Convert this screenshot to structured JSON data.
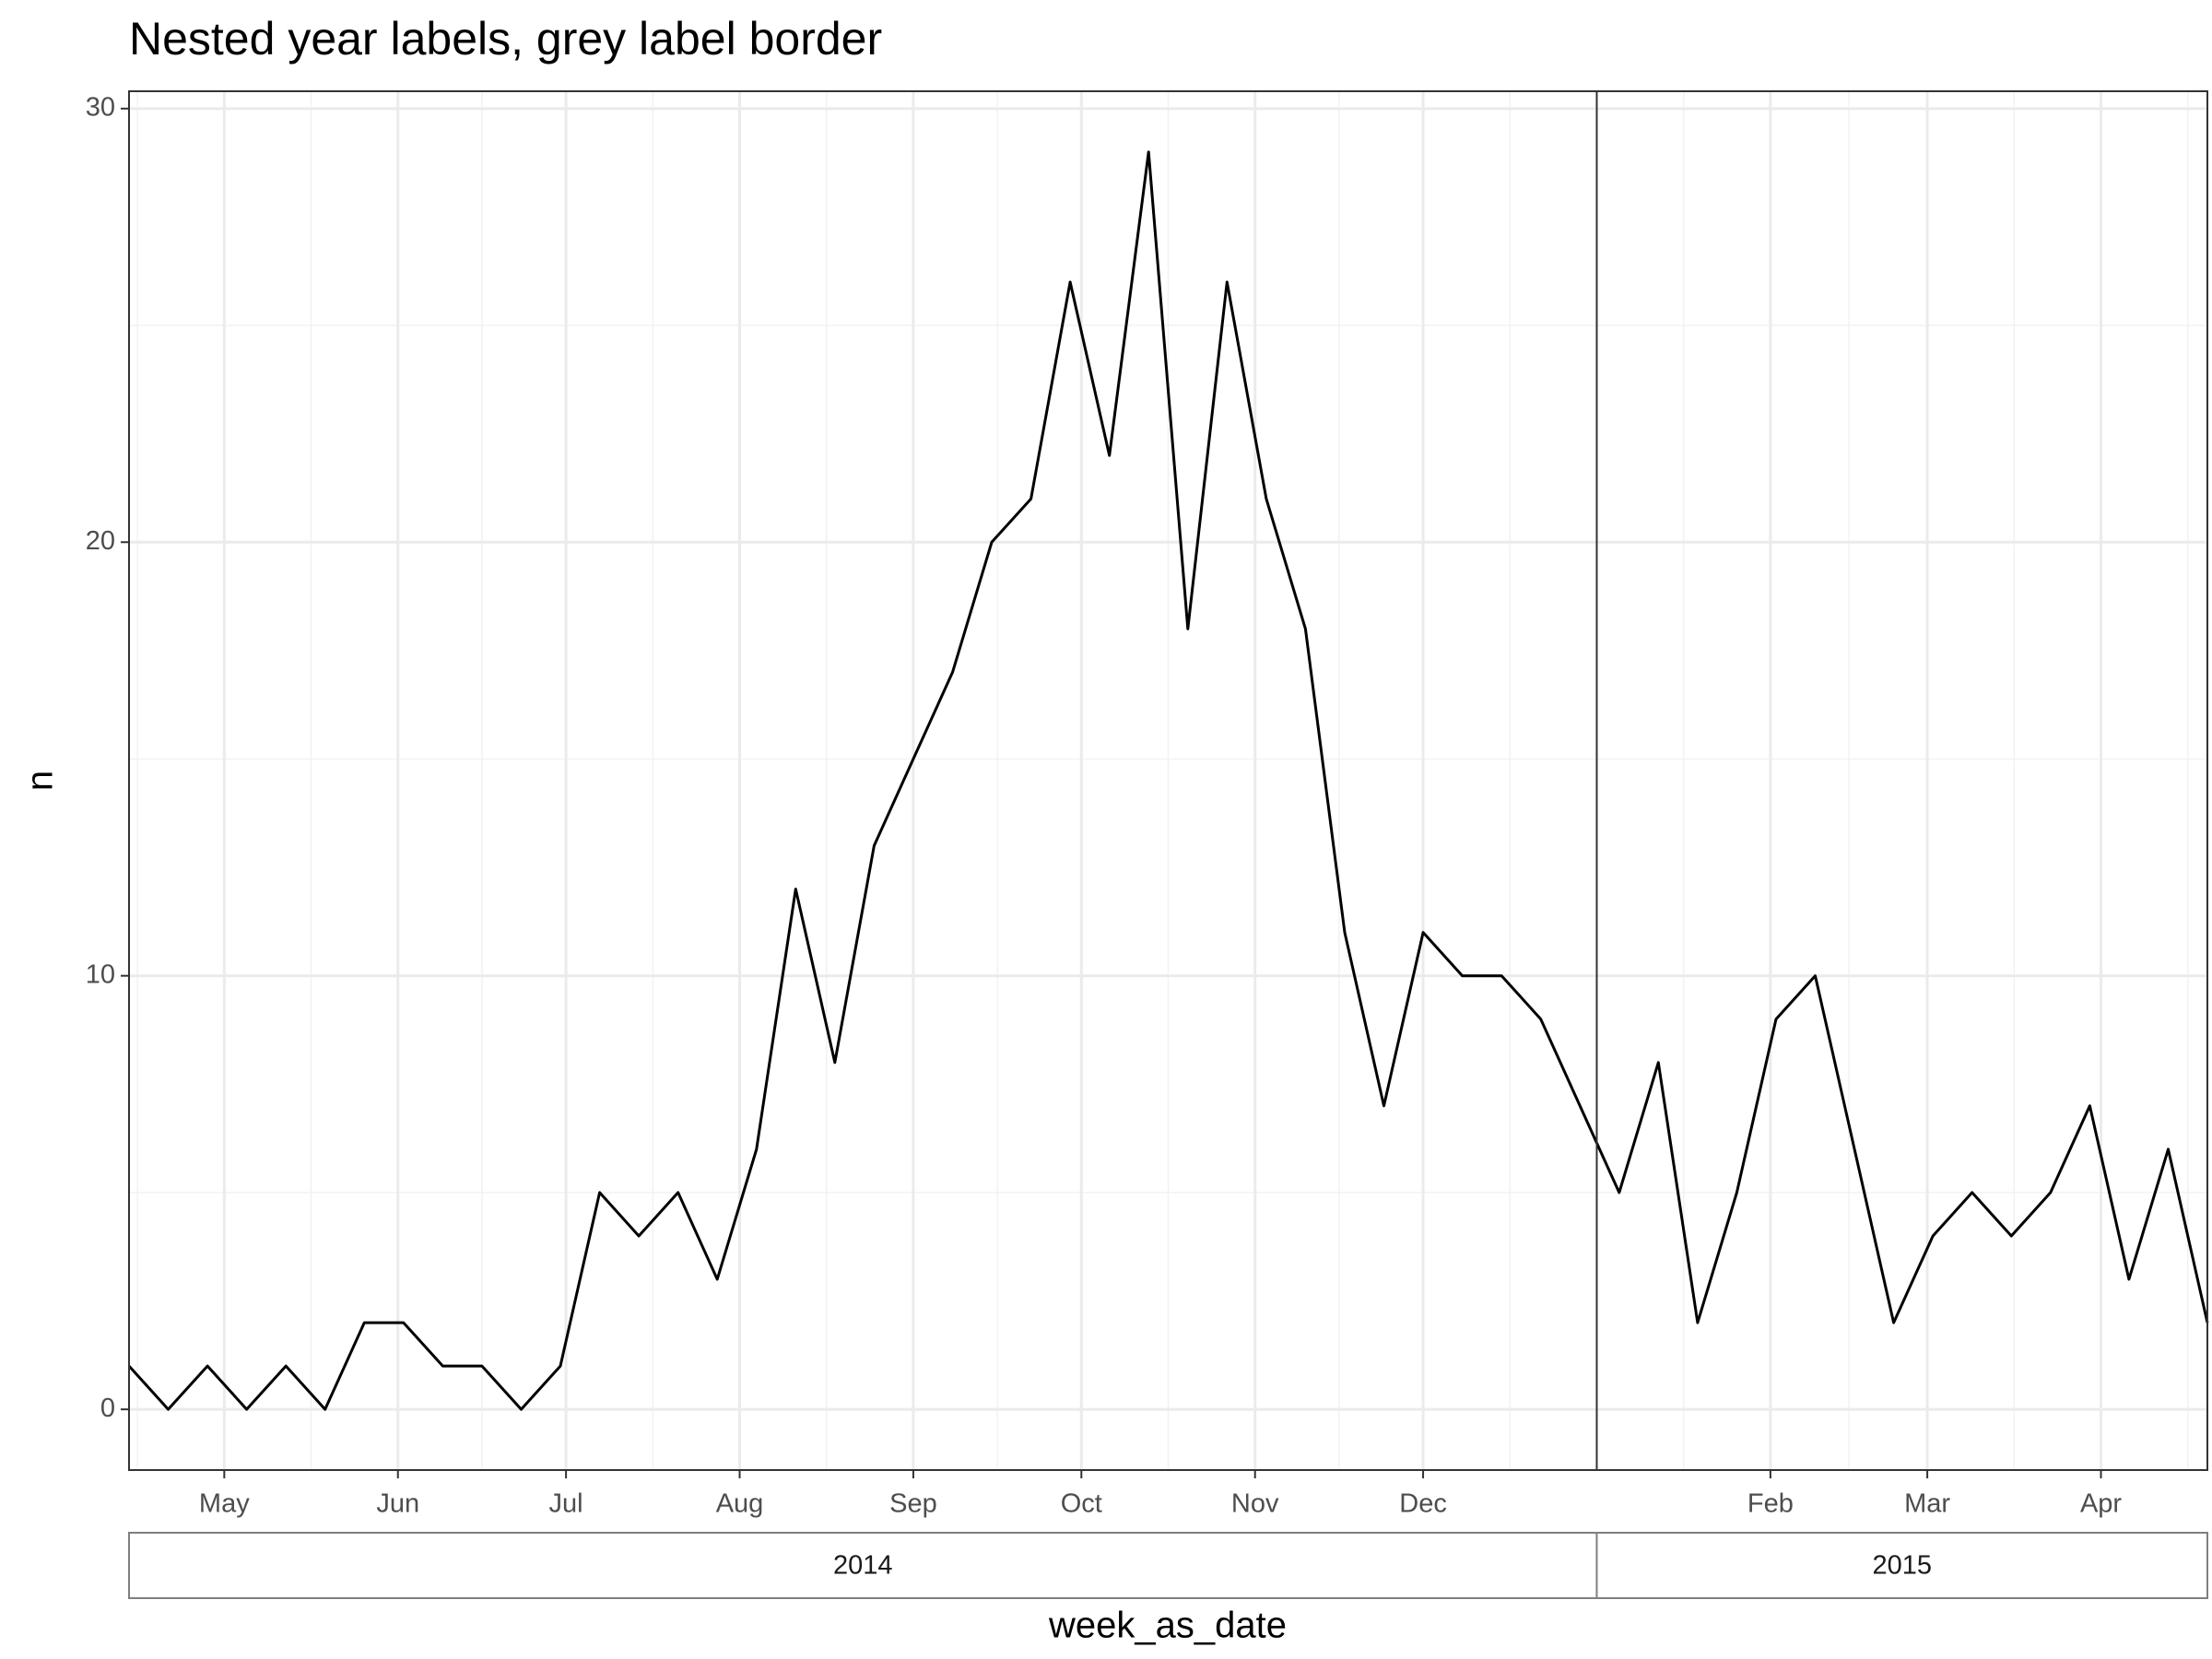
{
  "chart_data": {
    "type": "line",
    "title": "Nested year labels, grey label border",
    "x_label": "week_as_date",
    "y_label": "n",
    "x": [
      "2014-04-14",
      "2014-04-21",
      "2014-04-28",
      "2014-05-05",
      "2014-05-12",
      "2014-05-19",
      "2014-05-26",
      "2014-06-02",
      "2014-06-09",
      "2014-06-16",
      "2014-06-23",
      "2014-06-30",
      "2014-07-07",
      "2014-07-14",
      "2014-07-21",
      "2014-07-28",
      "2014-08-04",
      "2014-08-11",
      "2014-08-18",
      "2014-08-25",
      "2014-09-01",
      "2014-09-08",
      "2014-09-15",
      "2014-09-22",
      "2014-09-29",
      "2014-10-06",
      "2014-10-13",
      "2014-10-20",
      "2014-10-27",
      "2014-11-03",
      "2014-11-10",
      "2014-11-17",
      "2014-11-24",
      "2014-12-01",
      "2014-12-08",
      "2014-12-15",
      "2014-12-22",
      "2014-12-29",
      "2015-01-05",
      "2015-01-12",
      "2015-01-19",
      "2015-01-26",
      "2015-02-02",
      "2015-02-09",
      "2015-02-16",
      "2015-02-23",
      "2015-03-02",
      "2015-03-09",
      "2015-03-16",
      "2015-03-23",
      "2015-03-30",
      "2015-04-06",
      "2015-04-13",
      "2015-04-20"
    ],
    "values": [
      1,
      0,
      1,
      0,
      1,
      0,
      2,
      2,
      1,
      1,
      0,
      1,
      5,
      4,
      5,
      3,
      6,
      12,
      8,
      13,
      15,
      17,
      20,
      21,
      26,
      22,
      29,
      18,
      26,
      21,
      18,
      11,
      7,
      11,
      10,
      10,
      9,
      7,
      5,
      8,
      2,
      5,
      9,
      10,
      6,
      2,
      4,
      5,
      4,
      5,
      7,
      3,
      6,
      2
    ],
    "color": "#000000",
    "xlim": [
      "2014-04-14",
      "2015-04-20"
    ],
    "xticks": [
      {
        "value": "2014-05-01",
        "label": "May"
      },
      {
        "value": "2014-06-01",
        "label": "Jun"
      },
      {
        "value": "2014-07-01",
        "label": "Jul"
      },
      {
        "value": "2014-08-01",
        "label": "Aug"
      },
      {
        "value": "2014-09-01",
        "label": "Sep"
      },
      {
        "value": "2014-10-01",
        "label": "Oct"
      },
      {
        "value": "2014-11-01",
        "label": "Nov"
      },
      {
        "value": "2014-12-01",
        "label": "Dec"
      },
      {
        "value": "2015-02-01",
        "label": "Feb"
      },
      {
        "value": "2015-03-01",
        "label": "Mar"
      },
      {
        "value": "2015-04-01",
        "label": "Apr"
      }
    ],
    "ylim": [
      -1.4,
      30.4
    ],
    "yticks": [
      0,
      10,
      20,
      30
    ],
    "grid": true,
    "year_strips": [
      {
        "label": "2014",
        "start": "2014-04-14",
        "end": "2015-01-01"
      },
      {
        "label": "2015",
        "start": "2015-01-01",
        "end": "2015-04-20"
      }
    ]
  }
}
